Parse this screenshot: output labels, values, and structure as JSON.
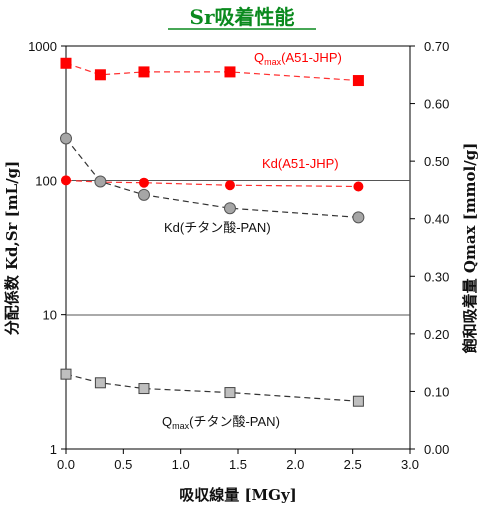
{
  "chart_data": {
    "type": "scatter",
    "title": "Sr吸着性能",
    "xlabel": "吸収線量 [MGy]",
    "ylabel_left": "分配係数 Kd,Sr [mL/g]",
    "ylabel_right": "飽和吸着量 Qmax [mmol/g]",
    "x_ticks": [
      "0.0",
      "0.5",
      "1.0",
      "1.5",
      "2.0",
      "2.5",
      "3.0"
    ],
    "y_left_ticks": [
      "1",
      "10",
      "100",
      "1000"
    ],
    "y_right_ticks": [
      "0.00",
      "0.10",
      "0.20",
      "0.30",
      "0.40",
      "0.50",
      "0.60",
      "0.70"
    ],
    "xlim": [
      0,
      3
    ],
    "ylim_left": [
      1,
      1000
    ],
    "ylim_right": [
      0,
      0.7
    ],
    "left_scale": "log",
    "grid": "horizontal lines at 10 and 100 (left axis)",
    "series": [
      {
        "name": "Qmax(A51-JHP)",
        "label_main": "Q",
        "label_sub": "max",
        "label_rest": "(A51-JHP)",
        "axis": "right",
        "marker": "square",
        "color": "#ff0000",
        "x": [
          0.0,
          0.3,
          0.68,
          1.43,
          2.55
        ],
        "y": [
          0.67,
          0.65,
          0.655,
          0.655,
          0.64
        ]
      },
      {
        "name": "Kd(A51-JHP)",
        "label_main": "Kd(A51-JHP)",
        "axis": "left",
        "marker": "circle",
        "color": "#ff0000",
        "x": [
          0.0,
          0.3,
          0.68,
          1.43,
          2.55
        ],
        "y": [
          100,
          97,
          96,
          92,
          90
        ]
      },
      {
        "name": "Kd(チタン酸-PAN)",
        "label_main": "Kd(チタン酸-PAN)",
        "axis": "left",
        "marker": "circle",
        "color": "#a6a6a6",
        "x": [
          0.0,
          0.3,
          0.68,
          1.43,
          2.55
        ],
        "y": [
          205,
          98,
          78,
          62,
          53
        ]
      },
      {
        "name": "Qmax(チタン酸-PAN)",
        "label_main": "Q",
        "label_sub": "max",
        "label_rest": "(チタン酸-PAN)",
        "axis": "right",
        "marker": "square",
        "color": "#bfbfbf",
        "x": [
          0.0,
          0.3,
          0.68,
          1.43,
          2.55
        ],
        "y": [
          0.13,
          0.115,
          0.105,
          0.098,
          0.083
        ]
      }
    ]
  }
}
